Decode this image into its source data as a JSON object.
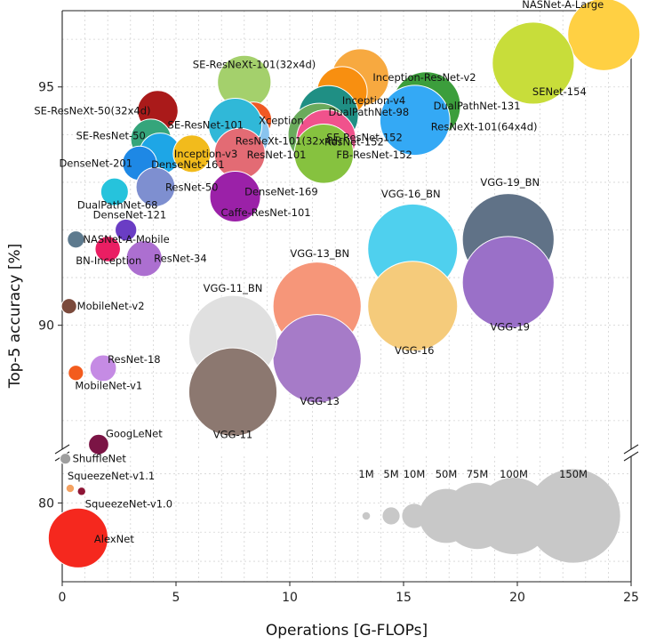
{
  "chart_data": {
    "type": "scatter",
    "title": "",
    "xlabel": "Operations [G-FLOPs]",
    "ylabel": "Top-5 accuracy [%]",
    "xlim": [
      0,
      25
    ],
    "ylim_upper": [
      87.4,
      96.6
    ],
    "ylim_lower": [
      77.3,
      81.6
    ],
    "y_axis_break": true,
    "grid": true,
    "x_ticks": [
      "0",
      "5",
      "10",
      "15",
      "20",
      "25"
    ],
    "y_ticks_upper": [
      "90",
      "95"
    ],
    "y_ticks_lower": [
      "80"
    ],
    "bubble_size_unit": "parameters",
    "size_legend": [
      {
        "label": "1M",
        "params": 1
      },
      {
        "label": "5M",
        "params": 5
      },
      {
        "label": "10M",
        "params": 10
      },
      {
        "label": "50M",
        "params": 50
      },
      {
        "label": "75M",
        "params": 75
      },
      {
        "label": "100M",
        "params": 100
      },
      {
        "label": "150M",
        "params": 150
      }
    ],
    "points": [
      {
        "name": "NASNet-A-Large",
        "x": 23.8,
        "y": 96.1,
        "params": 89,
        "color": "#ffd043"
      },
      {
        "name": "SENet-154",
        "x": 20.7,
        "y": 95.5,
        "params": 115,
        "color": "#c8dd3a"
      },
      {
        "name": "DualPathNet-131",
        "x": 16.0,
        "y": 94.6,
        "params": 80,
        "color": "#3c9e3c"
      },
      {
        "name": "ResNeXt-101(64x4d)",
        "x": 15.5,
        "y": 94.3,
        "params": 84,
        "color": "#34a9f5"
      },
      {
        "name": "Inception-ResNet-v2",
        "x": 13.1,
        "y": 95.2,
        "params": 56,
        "color": "#f7a940"
      },
      {
        "name": "Inception-v4",
        "x": 12.3,
        "y": 94.9,
        "params": 43,
        "color": "#f88f10"
      },
      {
        "name": "DualPathNet-98",
        "x": 11.7,
        "y": 94.4,
        "params": 61,
        "color": "#1f8f84"
      },
      {
        "name": "SE-ResNet-152",
        "x": 11.3,
        "y": 94.0,
        "params": 67,
        "color": "#6aaa5c"
      },
      {
        "name": "ResNet-152",
        "x": 11.6,
        "y": 93.9,
        "params": 60,
        "color": "#f0528c"
      },
      {
        "name": "FB-ResNet-152",
        "x": 11.5,
        "y": 93.6,
        "params": 60,
        "color": "#86c23f"
      },
      {
        "name": "SE-ResNeXt-101(32x4d)",
        "x": 8.0,
        "y": 95.1,
        "params": 49,
        "color": "#a4d06c"
      },
      {
        "name": "Xception",
        "x": 8.4,
        "y": 94.3,
        "params": 23,
        "color": "#f05924"
      },
      {
        "name": "ResNeXt-101(32x4d)",
        "x": 8.0,
        "y": 94.0,
        "params": 44,
        "color": "#89c4ee"
      },
      {
        "name": "SE-ResNet-101",
        "x": 7.6,
        "y": 94.2,
        "params": 49,
        "color": "#30b8d8"
      },
      {
        "name": "ResNet-101",
        "x": 7.8,
        "y": 93.6,
        "params": 44,
        "color": "#e36b74"
      },
      {
        "name": "DenseNet-169",
        "x": 7.7,
        "y": 92.8,
        "params": 14,
        "color": "#3b43b0"
      },
      {
        "name": "Caffe-ResNet-101",
        "x": 7.6,
        "y": 92.7,
        "params": 44,
        "color": "#9b21a8"
      },
      {
        "name": "SE-ResNeXt-50(32x4d)",
        "x": 4.2,
        "y": 94.5,
        "params": 28,
        "color": "#aa1a1a"
      },
      {
        "name": "SE-ResNet-50",
        "x": 3.9,
        "y": 93.9,
        "params": 28,
        "color": "#35a57b"
      },
      {
        "name": "DenseNet-161",
        "x": 4.3,
        "y": 93.6,
        "params": 29,
        "color": "#1ea6e6"
      },
      {
        "name": "Inception-v3",
        "x": 5.7,
        "y": 93.6,
        "params": 24,
        "color": "#f2bb1c"
      },
      {
        "name": "DenseNet-201",
        "x": 3.4,
        "y": 93.4,
        "params": 20,
        "color": "#1e88e5"
      },
      {
        "name": "ResNet-50",
        "x": 4.1,
        "y": 92.9,
        "params": 26,
        "color": "#7e8fd0"
      },
      {
        "name": "DualPathNet-68",
        "x": 2.3,
        "y": 92.8,
        "params": 13,
        "color": "#26c3dc"
      },
      {
        "name": "DenseNet-121",
        "x": 2.8,
        "y": 92.0,
        "params": 8,
        "color": "#6a3dc4"
      },
      {
        "name": "NASNet-A-Mobile",
        "x": 0.6,
        "y": 91.8,
        "params": 5,
        "color": "#5d7a8e"
      },
      {
        "name": "BN-Inception",
        "x": 2.0,
        "y": 91.6,
        "params": 11,
        "color": "#ea1e63"
      },
      {
        "name": "ResNet-34",
        "x": 3.6,
        "y": 91.4,
        "params": 22,
        "color": "#ac6fd0"
      },
      {
        "name": "MobileNet-v2",
        "x": 0.3,
        "y": 90.4,
        "params": 4,
        "color": "#7b4a3c"
      },
      {
        "name": "ResNet-18",
        "x": 1.8,
        "y": 89.1,
        "params": 12,
        "color": "#c58be4"
      },
      {
        "name": "MobileNet-v1",
        "x": 0.6,
        "y": 89.0,
        "params": 4,
        "color": "#f35c1e"
      },
      {
        "name": "GoogLeNet",
        "x": 1.6,
        "y": 87.5,
        "params": 7,
        "color": "#7b1445"
      },
      {
        "name": "ShuffleNet",
        "x": 0.14,
        "y": 87.2,
        "params": 2,
        "color": "#9e9e9e"
      },
      {
        "name": "VGG-19_BN",
        "x": 19.6,
        "y": 91.8,
        "params": 144,
        "color": "#607287"
      },
      {
        "name": "VGG-19",
        "x": 19.6,
        "y": 90.9,
        "params": 144,
        "color": "#9a70c8"
      },
      {
        "name": "VGG-16_BN",
        "x": 15.4,
        "y": 91.6,
        "params": 138,
        "color": "#4fd0ee"
      },
      {
        "name": "VGG-16",
        "x": 15.4,
        "y": 90.4,
        "params": 138,
        "color": "#f5cb7b"
      },
      {
        "name": "VGG-13_BN",
        "x": 11.2,
        "y": 90.4,
        "params": 133,
        "color": "#f69679"
      },
      {
        "name": "VGG-13",
        "x": 11.2,
        "y": 89.3,
        "params": 133,
        "color": "#a67bc8"
      },
      {
        "name": "VGG-11_BN",
        "x": 7.5,
        "y": 89.7,
        "params": 133,
        "color": "#e0e0e0"
      },
      {
        "name": "VGG-11",
        "x": 7.5,
        "y": 88.6,
        "params": 133,
        "color": "#8c7870"
      },
      {
        "name": "SqueezeNet-v1.1",
        "x": 0.35,
        "y": 80.5,
        "params": 1.2,
        "color": "#f4a262"
      },
      {
        "name": "SqueezeNet-v1.0",
        "x": 0.85,
        "y": 80.4,
        "params": 1.2,
        "color": "#8e1535"
      },
      {
        "name": "AlexNet",
        "x": 0.7,
        "y": 78.8,
        "params": 61,
        "color": "#f5281e"
      }
    ]
  }
}
